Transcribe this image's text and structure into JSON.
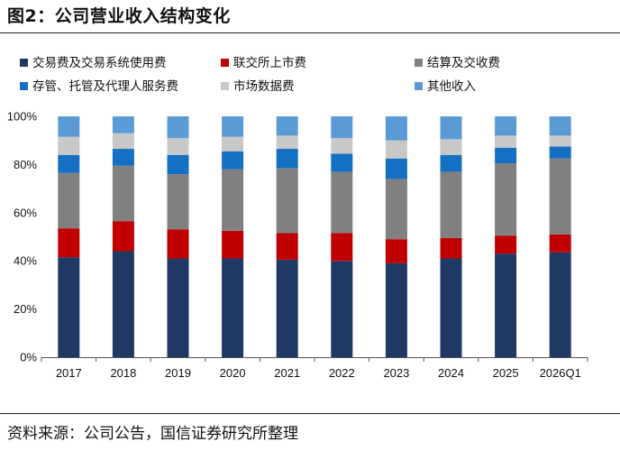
{
  "figure_title": "图2：公司营业收入结构变化",
  "source": "资料来源：公司公告，国信证券研究所整理",
  "chart_data": {
    "type": "bar",
    "stacked": true,
    "percent": true,
    "title": "",
    "xlabel": "",
    "ylabel": "",
    "ylim": [
      0,
      100
    ],
    "y_ticks": [
      0,
      20,
      40,
      60,
      80,
      100
    ],
    "y_tick_labels": [
      "0%",
      "20%",
      "40%",
      "60%",
      "80%",
      "100%"
    ],
    "grid": false,
    "legend_position": "top",
    "categories": [
      "2017",
      "2018",
      "2019",
      "2020",
      "2021",
      "2022",
      "2023",
      "2024",
      "2025",
      "2026Q1"
    ],
    "series": [
      {
        "name": "交易费及交易系统使用费",
        "color": "#1f3864",
        "values": [
          41.5,
          44,
          41,
          41,
          40.5,
          40,
          39,
          41,
          43,
          43.5
        ]
      },
      {
        "name": "联交所上市费",
        "color": "#c00000",
        "values": [
          12,
          12.5,
          12,
          11.5,
          11,
          11.5,
          10,
          8.5,
          7.5,
          7.5
        ]
      },
      {
        "name": "结算及交收费",
        "color": "#808080",
        "values": [
          23,
          23,
          23,
          25.5,
          27,
          25.5,
          25,
          27.5,
          30,
          31.5
        ]
      },
      {
        "name": "存管、托管及代理人服务费",
        "color": "#1470c2",
        "values": [
          7.5,
          7,
          8,
          7.5,
          8,
          7.5,
          8.5,
          7,
          6.5,
          5
        ]
      },
      {
        "name": "市场数据费",
        "color": "#c8c8c8",
        "values": [
          7.5,
          6.5,
          7,
          6,
          5.5,
          6.5,
          7.5,
          6.5,
          5,
          4.5
        ]
      },
      {
        "name": "其他收入",
        "color": "#5b9bd5",
        "values": [
          8.5,
          7,
          9,
          8.5,
          8,
          9,
          10,
          9.5,
          8,
          8
        ]
      }
    ]
  }
}
